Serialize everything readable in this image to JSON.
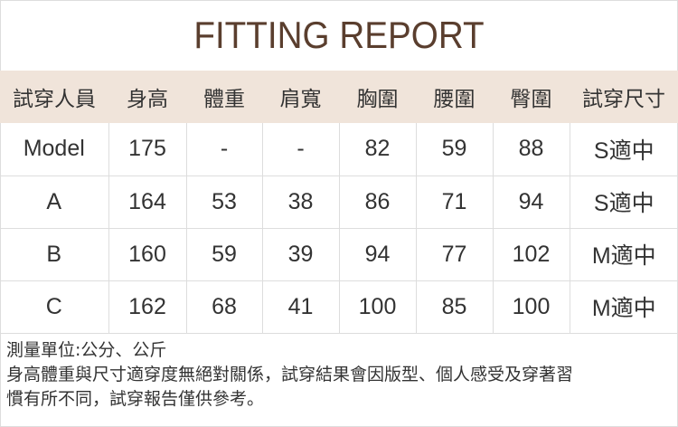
{
  "title": "FITTING REPORT",
  "headers": [
    "試穿人員",
    "身高",
    "體重",
    "肩寬",
    "胸圍",
    "腰圍",
    "臀圍",
    "試穿尺寸"
  ],
  "rows": [
    [
      "Model",
      "175",
      "-",
      "-",
      "82",
      "59",
      "88",
      "S適中"
    ],
    [
      "A",
      "164",
      "53",
      "38",
      "86",
      "71",
      "94",
      "S適中"
    ],
    [
      "B",
      "160",
      "59",
      "39",
      "94",
      "77",
      "102",
      "M適中"
    ],
    [
      "C",
      "162",
      "68",
      "41",
      "100",
      "85",
      "100",
      "M適中"
    ]
  ],
  "notes": [
    "測量單位:公分、公斤",
    "身高體重與尺寸適穿度無絕對關係，試穿結果會因版型、個人感受及穿著習",
    "慣有所不同，試穿報告僅供參考。"
  ]
}
